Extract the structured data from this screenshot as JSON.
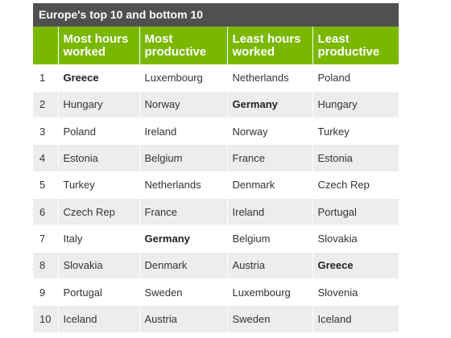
{
  "title": "Europe's top 10 and bottom 10",
  "headers": [
    "",
    "Most hours worked",
    "Most productive",
    "Least hours worked",
    "Least productive"
  ],
  "rows": [
    [
      "1",
      "Greece",
      "Luxembourg",
      "Netherlands",
      "Poland"
    ],
    [
      "2",
      "Hungary",
      "Norway",
      "Germany",
      "Hungary"
    ],
    [
      "3",
      "Poland",
      "Ireland",
      "Norway",
      "Turkey"
    ],
    [
      "4",
      "Estonia",
      "Belgium",
      "France",
      "Estonia"
    ],
    [
      "5",
      "Turkey",
      "Netherlands",
      "Denmark",
      "Czech Rep"
    ],
    [
      "6",
      "Czech Rep",
      "France",
      "Ireland",
      "Portugal"
    ],
    [
      "7",
      "Italy",
      "Germany",
      "Belgium",
      "Slovakia"
    ],
    [
      "8",
      "Slovakia",
      "Denmark",
      "Austria",
      "Greece"
    ],
    [
      "9",
      "Portugal",
      "Sweden",
      "Luxembourg",
      "Slovenia"
    ],
    [
      "10",
      "Iceland",
      "Austria",
      "Sweden",
      "Iceland"
    ]
  ],
  "highlighted_countries": [
    "Greece",
    "Germany"
  ],
  "colors": {
    "title_bg": "#505050",
    "header_bg": "#7ab800",
    "stripe": "#ededed"
  }
}
